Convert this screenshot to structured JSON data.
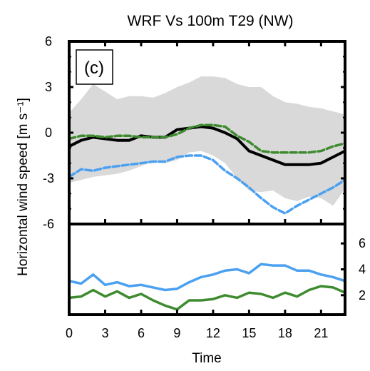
{
  "chart_data": [
    {
      "type": "area",
      "panel_label": "(c)",
      "title": "WRF Vs 100m T29 (NW)",
      "ylabel": "Horizontal wind speed [m s⁻¹]",
      "xlabel": "Time",
      "xlim": [
        0,
        23
      ],
      "ylim": [
        -6,
        6
      ],
      "yticks": [
        "6",
        "3",
        "0",
        "-3",
        "-6"
      ],
      "x": [
        0,
        1,
        2,
        3,
        4,
        5,
        6,
        7,
        8,
        9,
        10,
        11,
        12,
        13,
        14,
        15,
        16,
        17,
        18,
        19,
        20,
        21,
        22,
        23
      ],
      "band": {
        "color": "#d9d9d9",
        "upper": [
          1.3,
          2.2,
          3.2,
          2.7,
          2.2,
          2.4,
          2.4,
          2.3,
          2.6,
          3.0,
          3.3,
          3.7,
          3.7,
          3.6,
          3.2,
          3.0,
          3.0,
          2.4,
          2.0,
          1.9,
          1.7,
          1.6,
          1.4,
          1.2
        ],
        "lower": [
          -3.3,
          -3.1,
          -2.9,
          -2.8,
          -2.7,
          -2.5,
          -2.2,
          -1.9,
          -2.0,
          -1.8,
          -1.3,
          -1.2,
          -1.5,
          -2.0,
          -3.0,
          -3.8,
          -3.9,
          -3.8,
          -4.3,
          -4.5,
          -4.2,
          -4.3,
          -4.8,
          -3.7
        ]
      },
      "series": [
        {
          "color": "#000000",
          "style": "solid",
          "values": [
            -0.9,
            -0.5,
            -0.3,
            -0.4,
            -0.5,
            -0.5,
            -0.2,
            -0.3,
            -0.3,
            0.2,
            0.3,
            0.4,
            0.3,
            0.0,
            -0.4,
            -1.2,
            -1.5,
            -1.8,
            -2.1,
            -2.1,
            -2.1,
            -2.0,
            -1.6,
            -1.2
          ]
        },
        {
          "color": "#3e8b2f",
          "style": "dashed",
          "values": [
            -0.4,
            -0.2,
            -0.2,
            -0.3,
            -0.2,
            -0.2,
            -0.3,
            -0.3,
            -0.3,
            -0.1,
            0.3,
            0.5,
            0.5,
            0.4,
            -0.2,
            -0.6,
            -1.2,
            -1.3,
            -1.3,
            -1.3,
            -1.3,
            -1.2,
            -0.9,
            -0.7
          ]
        },
        {
          "color": "#4ba0f0",
          "style": "dashed",
          "values": [
            -2.9,
            -2.4,
            -2.5,
            -2.3,
            -2.2,
            -2.1,
            -2.0,
            -1.9,
            -1.9,
            -1.6,
            -1.5,
            -1.5,
            -1.8,
            -2.5,
            -3.0,
            -3.6,
            -4.3,
            -4.9,
            -5.3,
            -4.8,
            -4.4,
            -4.0,
            -3.6,
            -3.1
          ]
        }
      ]
    },
    {
      "type": "line",
      "x": [
        0,
        1,
        2,
        3,
        4,
        5,
        6,
        7,
        8,
        9,
        10,
        11,
        12,
        13,
        14,
        15,
        16,
        17,
        18,
        19,
        20,
        21,
        22,
        23
      ],
      "xticks": [
        "0",
        "3",
        "6",
        "9",
        "12",
        "15",
        "18",
        "21"
      ],
      "xlabel": "Time",
      "ylim": [
        0.5,
        7.5
      ],
      "yticks": [
        "6",
        "4",
        "2"
      ],
      "series": [
        {
          "color": "#4ba0f0",
          "values": [
            3.1,
            2.9,
            3.6,
            2.8,
            3.0,
            2.7,
            2.8,
            2.6,
            2.4,
            2.5,
            3.0,
            3.4,
            3.6,
            3.9,
            4.0,
            3.7,
            4.4,
            4.3,
            4.3,
            3.9,
            3.9,
            3.6,
            3.4,
            3.1
          ]
        },
        {
          "color": "#3e8b2f",
          "values": [
            1.8,
            1.9,
            2.4,
            1.9,
            2.3,
            1.8,
            2.1,
            1.6,
            1.2,
            0.9,
            1.6,
            1.6,
            1.7,
            2.0,
            1.8,
            2.2,
            2.1,
            1.8,
            2.2,
            1.9,
            2.4,
            2.7,
            2.6,
            2.2
          ]
        }
      ]
    }
  ]
}
